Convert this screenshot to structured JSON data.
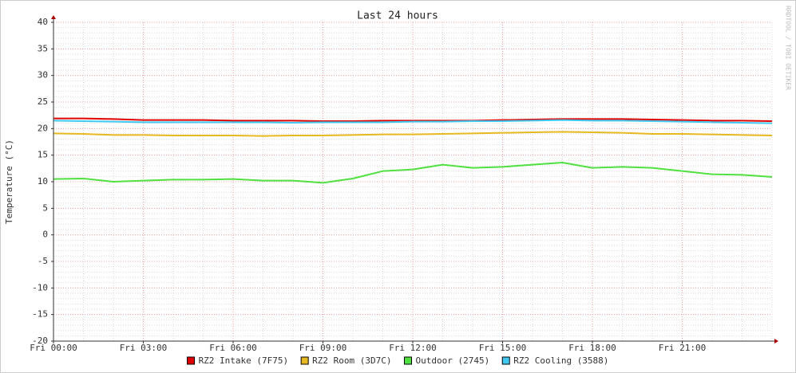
{
  "chart_data": {
    "type": "line",
    "title": "Last 24 hours",
    "ylabel": "Temperature (°C)",
    "watermark": "RRDTOOL / TOBI OETIKER",
    "x": [
      0,
      1,
      2,
      3,
      4,
      5,
      6,
      7,
      8,
      9,
      10,
      11,
      12,
      13,
      14,
      15,
      16,
      17,
      18,
      19,
      20,
      21,
      22,
      23,
      24
    ],
    "xlim": [
      0,
      24
    ],
    "xticks": [
      {
        "value": 0,
        "label": "Fri 00:00"
      },
      {
        "value": 3,
        "label": "Fri 03:00"
      },
      {
        "value": 6,
        "label": "Fri 06:00"
      },
      {
        "value": 9,
        "label": "Fri 09:00"
      },
      {
        "value": 12,
        "label": "Fri 12:00"
      },
      {
        "value": 15,
        "label": "Fri 15:00"
      },
      {
        "value": 18,
        "label": "Fri 18:00"
      },
      {
        "value": 21,
        "label": "Fri 21:00"
      }
    ],
    "ylim": [
      -20,
      40
    ],
    "yticks": [
      -20,
      -15,
      -10,
      -5,
      0,
      5,
      10,
      15,
      20,
      25,
      30,
      35,
      40
    ],
    "x_minor_step": 1,
    "y_minor_step": 1,
    "grid": true,
    "legend": "bottom",
    "series": [
      {
        "name": "RZ2 Intake (7F75)",
        "color": "#e00000",
        "values": [
          21.9,
          21.9,
          21.8,
          21.6,
          21.6,
          21.6,
          21.5,
          21.5,
          21.5,
          21.4,
          21.4,
          21.5,
          21.5,
          21.5,
          21.5,
          21.6,
          21.7,
          21.8,
          21.8,
          21.8,
          21.7,
          21.6,
          21.5,
          21.5,
          21.4
        ]
      },
      {
        "name": "RZ2 Room (3D7C)",
        "color": "#e8b820",
        "values": [
          19.1,
          19.0,
          18.8,
          18.8,
          18.7,
          18.7,
          18.7,
          18.6,
          18.7,
          18.7,
          18.8,
          18.9,
          18.9,
          19.0,
          19.1,
          19.2,
          19.3,
          19.4,
          19.3,
          19.2,
          19.0,
          19.0,
          18.9,
          18.8,
          18.7
        ]
      },
      {
        "name": "Outdoor (2745)",
        "color": "#50e040",
        "values": [
          10.5,
          10.6,
          10.0,
          10.2,
          10.4,
          10.4,
          10.5,
          10.2,
          10.2,
          9.8,
          10.6,
          12.0,
          12.3,
          13.2,
          12.6,
          12.8,
          13.2,
          13.6,
          12.6,
          12.8,
          12.6,
          12.0,
          11.4,
          11.3,
          10.9
        ]
      },
      {
        "name": "RZ2 Cooling (3588)",
        "color": "#40c8f0",
        "values": [
          21.5,
          21.4,
          21.3,
          21.2,
          21.2,
          21.2,
          21.2,
          21.2,
          21.1,
          21.2,
          21.2,
          21.2,
          21.3,
          21.3,
          21.4,
          21.4,
          21.5,
          21.6,
          21.5,
          21.5,
          21.4,
          21.3,
          21.2,
          21.1,
          21.0
        ]
      }
    ]
  }
}
